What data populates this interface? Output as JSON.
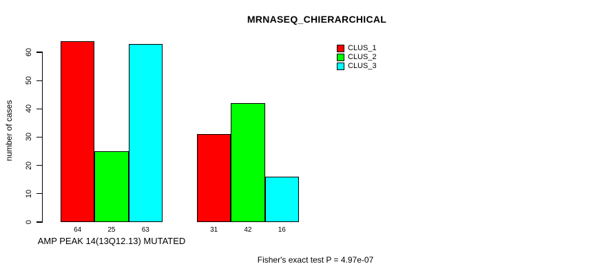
{
  "chart_data": {
    "type": "bar",
    "title": "MRNASEQ_CHIERARCHICAL",
    "ylabel": "number of cases",
    "xlabel": "AMP PEAK 14(13Q12.13) MUTATED",
    "annotation": "Fisher's exact test P = 4.97e-07",
    "group_labels": [
      "AMP PEAK 14(13Q12.13) MUTATED",
      ""
    ],
    "series": [
      {
        "name": "CLUS_1",
        "color": "#FF0000",
        "values": [
          64,
          31
        ]
      },
      {
        "name": "CLUS_2",
        "color": "#00FF00",
        "values": [
          25,
          42
        ]
      },
      {
        "name": "CLUS_3",
        "color": "#00FFFF",
        "values": [
          63,
          16
        ]
      }
    ],
    "bar_value_labels": [
      [
        64,
        25,
        63
      ],
      [
        31,
        42,
        16
      ]
    ],
    "ylim": [
      0,
      60
    ],
    "yticks": [
      0,
      10,
      20,
      30,
      40,
      50,
      60
    ],
    "grid": false,
    "legend_position": "top-right-inside",
    "background_color": "#FFFFFF",
    "axis_color": "#000000"
  }
}
